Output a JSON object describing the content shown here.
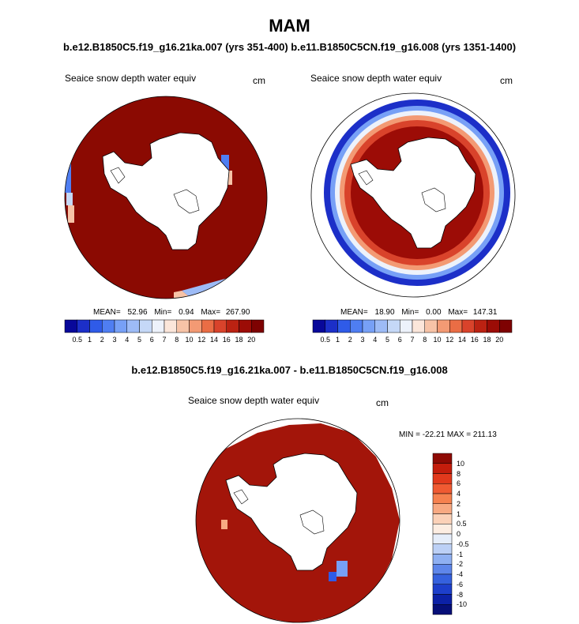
{
  "header": {
    "title": "MAM",
    "subtitle": "b.e12.B1850C5.f19_g16.21ka.007 (yrs 351-400) b.e11.B1850C5CN.f19_g16.008 (yrs 1351-1400)",
    "diff_title": "b.e12.B1850C5.f19_g16.21ka.007 - b.e11.B1850C5CN.f19_g16.008"
  },
  "panels": {
    "left": {
      "title": "Seaice snow depth water equiv",
      "unit": "cm",
      "mean_label": "MEAN=",
      "mean": "52.96",
      "min_label": "Min=",
      "min": "0.94",
      "max_label": "Max=",
      "max": "267.90"
    },
    "right": {
      "title": "Seaice snow depth water equiv",
      "unit": "cm",
      "mean_label": "MEAN=",
      "mean": "18.90",
      "min_label": "Min=",
      "min": "0.00",
      "max_label": "Max=",
      "max": "147.31"
    },
    "diff": {
      "title": "Seaice snow depth water equiv",
      "unit": "cm",
      "range_text": "MIN = -22.21 MAX = 211.13"
    }
  },
  "colorbar_abs": {
    "labels": [
      "0.5",
      "1",
      "2",
      "3",
      "4",
      "5",
      "6",
      "7",
      "8",
      "10",
      "12",
      "14",
      "16",
      "18",
      "20"
    ],
    "colors": [
      "#08089a",
      "#1c2fc8",
      "#2f5be8",
      "#4f7ef2",
      "#77a0f6",
      "#9dbbf6",
      "#c5d8f7",
      "#edf2fb",
      "#fbe6da",
      "#f7c3a7",
      "#f39a74",
      "#ea6d45",
      "#d9432b",
      "#bb2212",
      "#9c0c06",
      "#7e0202"
    ]
  },
  "colorbar_diff": {
    "labels": [
      "10",
      "8",
      "6",
      "4",
      "2",
      "1",
      "0.5",
      "0",
      "-0.5",
      "-1",
      "-2",
      "-4",
      "-6",
      "-8",
      "-10"
    ],
    "colors": [
      "#8e0a04",
      "#c41d0c",
      "#e2391c",
      "#f05a32",
      "#f6814f",
      "#f8a982",
      "#fbd1b8",
      "#fcede2",
      "#e5edfa",
      "#bcd0f6",
      "#8fb0f2",
      "#5e86ea",
      "#3561de",
      "#1d3fcb",
      "#0c21a6",
      "#060f78"
    ]
  },
  "map_colors": {
    "ocean_fill": "#8b0a02",
    "land": "#ffffff"
  }
}
